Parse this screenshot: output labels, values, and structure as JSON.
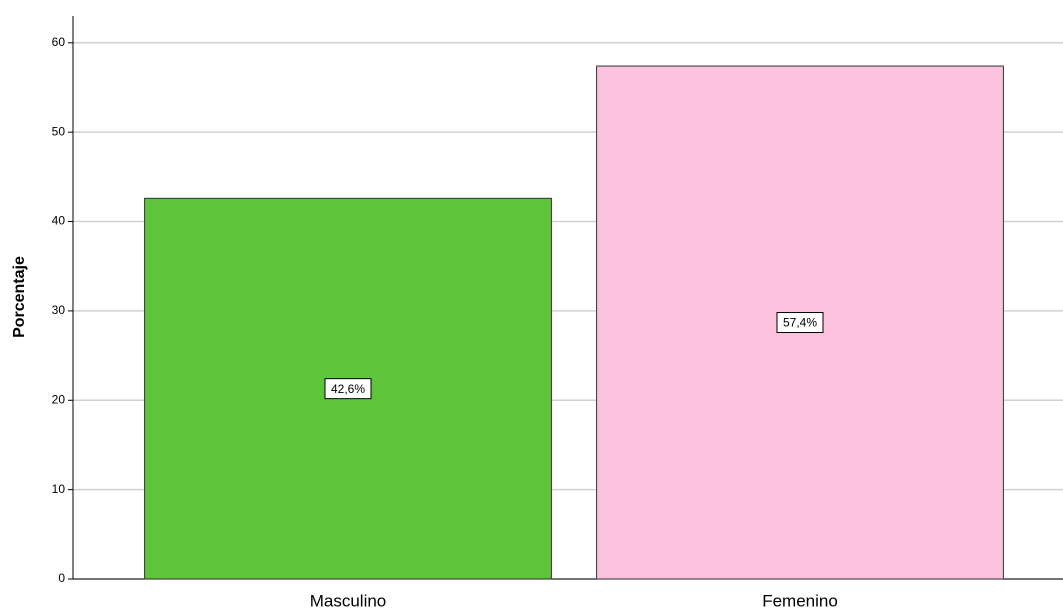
{
  "chart_data": {
    "type": "bar",
    "y_label": "Porcentaje",
    "categories": [
      "Masculino",
      "Femenino"
    ],
    "values": [
      42.6,
      57.4
    ],
    "value_labels": [
      "42,6%",
      "57,4%"
    ],
    "colors": [
      "#5ec43a",
      "#fcc2e0"
    ],
    "ylim": [
      0,
      63
    ],
    "yticks": [
      0,
      10,
      20,
      30,
      40,
      50,
      60
    ],
    "grid": true
  }
}
